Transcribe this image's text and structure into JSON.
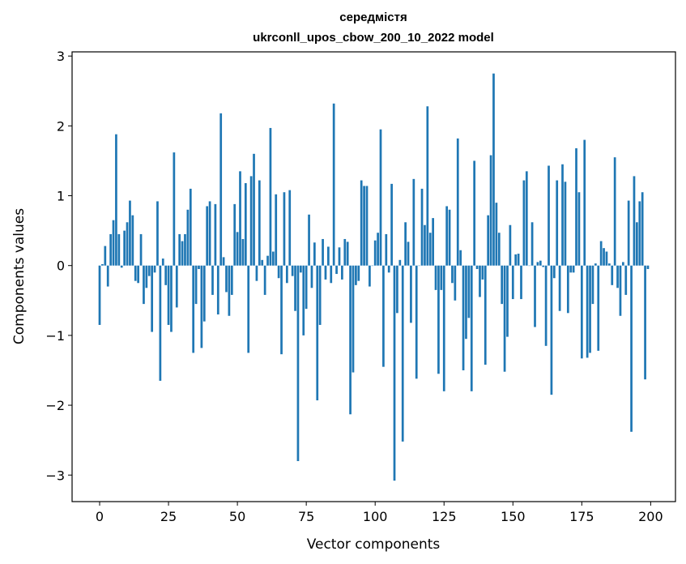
{
  "chart_data": {
    "type": "bar",
    "title_line1": "середмістя",
    "title_line2": "ukrconll_upos_cbow_200_10_2022 model",
    "xlabel": "Vector components",
    "ylabel": "Components values",
    "xlim": [
      -10,
      209
    ],
    "ylim": [
      -3.38,
      3.06
    ],
    "xticks": [
      0,
      25,
      50,
      75,
      100,
      125,
      150,
      175,
      200
    ],
    "xtick_labels": [
      "0",
      "25",
      "50",
      "75",
      "100",
      "125",
      "150",
      "175",
      "200"
    ],
    "yticks": [
      -3,
      -2,
      -1,
      0,
      1,
      2,
      3
    ],
    "ytick_labels": [
      "−3",
      "−2",
      "−1",
      "0",
      "1",
      "2",
      "3"
    ],
    "bar_color": "#1f77b4",
    "values": [
      -0.85,
      0.02,
      0.28,
      -0.3,
      0.45,
      0.65,
      1.88,
      0.45,
      -0.03,
      0.5,
      0.62,
      0.93,
      0.72,
      -0.22,
      -0.25,
      0.45,
      -0.55,
      -0.32,
      -0.15,
      -0.95,
      -0.1,
      0.92,
      -1.65,
      0.1,
      -0.28,
      -0.85,
      -0.95,
      1.62,
      -0.6,
      0.45,
      0.35,
      0.45,
      0.8,
      1.1,
      -1.25,
      -0.55,
      -0.05,
      -1.18,
      -0.8,
      0.85,
      0.92,
      -0.42,
      0.88,
      -0.7,
      2.18,
      0.12,
      -0.38,
      -0.72,
      -0.42,
      0.88,
      0.48,
      1.35,
      0.38,
      1.18,
      -1.25,
      1.28,
      1.6,
      -0.22,
      1.22,
      0.08,
      -0.42,
      0.14,
      1.97,
      0.2,
      1.02,
      -0.18,
      -1.27,
      1.05,
      -0.25,
      1.08,
      -0.15,
      -0.65,
      -2.8,
      -0.1,
      -1.0,
      -0.62,
      0.73,
      -0.32,
      0.33,
      -1.93,
      -0.85,
      0.38,
      -0.2,
      0.27,
      -0.25,
      2.32,
      -0.12,
      0.26,
      -0.2,
      0.38,
      0.34,
      -2.13,
      -1.53,
      -0.28,
      -0.22,
      1.22,
      1.14,
      1.14,
      -0.3,
      0.0,
      0.36,
      0.47,
      1.95,
      -1.45,
      0.45,
      -0.1,
      1.17,
      -3.08,
      -0.68,
      0.08,
      -2.52,
      0.62,
      0.34,
      -0.82,
      1.24,
      -1.62,
      0.0,
      1.1,
      0.58,
      2.28,
      0.47,
      0.68,
      -0.35,
      -1.55,
      -0.35,
      -1.8,
      0.85,
      0.8,
      -0.25,
      -0.5,
      1.82,
      0.22,
      -1.5,
      -1.05,
      -0.75,
      -1.8,
      1.5,
      -0.05,
      -0.45,
      -0.2,
      -1.42,
      0.72,
      1.58,
      2.75,
      0.9,
      0.47,
      -0.55,
      -1.52,
      -1.02,
      0.58,
      -0.48,
      0.16,
      0.17,
      -0.48,
      1.22,
      1.35,
      0.0,
      0.62,
      -0.88,
      0.05,
      0.07,
      -0.02,
      -1.15,
      1.43,
      -1.85,
      -0.18,
      1.22,
      -0.65,
      1.45,
      1.2,
      -0.68,
      -0.1,
      -0.1,
      1.68,
      1.05,
      -1.33,
      1.8,
      -1.32,
      -1.25,
      -0.55,
      0.03,
      -1.22,
      0.35,
      0.25,
      0.2,
      0.03,
      -0.28,
      1.55,
      -0.32,
      -0.72,
      0.05,
      -0.42,
      0.93,
      -2.38,
      1.28,
      0.62,
      0.92,
      1.05,
      -1.63,
      -0.05
    ]
  }
}
